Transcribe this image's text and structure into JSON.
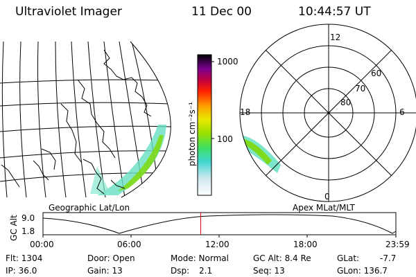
{
  "header": {
    "instrument": "Ultraviolet Imager",
    "date": "11 Dec 00",
    "time": "10:44:57 UT"
  },
  "map": {
    "caption": "Geographic Lat/Lon"
  },
  "colorbar": {
    "unit_label": "photon cm⁻²s⁻¹",
    "ticks": [
      "1000",
      "100"
    ]
  },
  "polar": {
    "caption": "Apex MLat/MLT",
    "mlt_labels": {
      "top": "12",
      "left": "18",
      "right": "6",
      "bottom": "0"
    },
    "mlat_labels": [
      "60",
      "70",
      "80"
    ]
  },
  "altitude_plot": {
    "ylabel": "GC Alt",
    "y_ticks": [
      "9.0",
      "1.8"
    ],
    "x_ticks": [
      "00:00",
      "06:00",
      "12:00",
      "18:00",
      "23:59"
    ],
    "current_time_fraction": 0.447
  },
  "info": {
    "flt": "Flt: 1304",
    "ip": "IP: 36.0",
    "door": "Door: Open",
    "gain": "Gain: 13",
    "mode": "Mode: Normal",
    "dsp_label": "Dsp:",
    "dsp_value": "2.1",
    "gc_alt": "GC Alt: 8.4 Re",
    "seq": "Seq: 13",
    "glat_label": "GLat:",
    "glat_value": "-7.7",
    "glon": "GLon: 136.7"
  },
  "colors": {
    "ink": "#000000",
    "marker": "#e00000",
    "aurora_main": "#66e0c0",
    "aurora_accent": "#7fd800"
  }
}
